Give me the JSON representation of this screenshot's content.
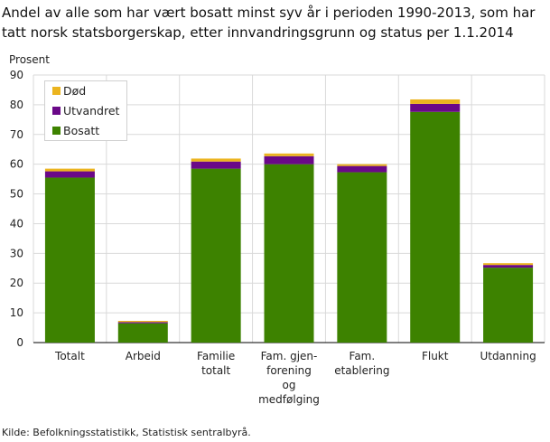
{
  "chart_data": {
    "type": "bar",
    "stacked": true,
    "title": "Andel av alle som har vært bosatt minst syv år i perioden 1990-2013, som har tatt norsk statsborgerskap, etter innvandringsgrunn og status per 1.1.2014",
    "ylabel": "Prosent",
    "ylim": [
      0,
      90
    ],
    "yticks": [
      0,
      10,
      20,
      30,
      40,
      50,
      60,
      70,
      80,
      90
    ],
    "grid": true,
    "legend_position": "top-left",
    "categories": [
      "Totalt",
      "Arbeid",
      "Familie totalt",
      "Fam. gjen-forening og medfølging",
      "Fam. etablering",
      "Flukt",
      "Utdanning"
    ],
    "category_lines": [
      [
        "Totalt"
      ],
      [
        "Arbeid"
      ],
      [
        "Familie",
        "totalt"
      ],
      [
        "Fam. gjen-",
        "forening",
        "og",
        "medfølging"
      ],
      [
        "Fam.",
        "etablering"
      ],
      [
        "Flukt"
      ],
      [
        "Utdanning"
      ]
    ],
    "series": [
      {
        "name": "Bosatt",
        "color": "#3d8200",
        "values": [
          55.5,
          6.5,
          58.5,
          60.0,
          57.3,
          77.6,
          25.2
        ]
      },
      {
        "name": "Utvandret",
        "color": "#6a0888",
        "values": [
          2.1,
          0.4,
          2.4,
          2.7,
          2.1,
          2.7,
          0.9
        ]
      },
      {
        "name": "Død",
        "color": "#ebb41f",
        "values": [
          0.9,
          0.4,
          1.0,
          0.9,
          0.6,
          1.5,
          0.6
        ]
      }
    ],
    "legend_order": [
      "Død",
      "Utvandret",
      "Bosatt"
    ],
    "source": "Kilde: Befolkningsstatistikk, Statistisk sentralbyrå."
  }
}
